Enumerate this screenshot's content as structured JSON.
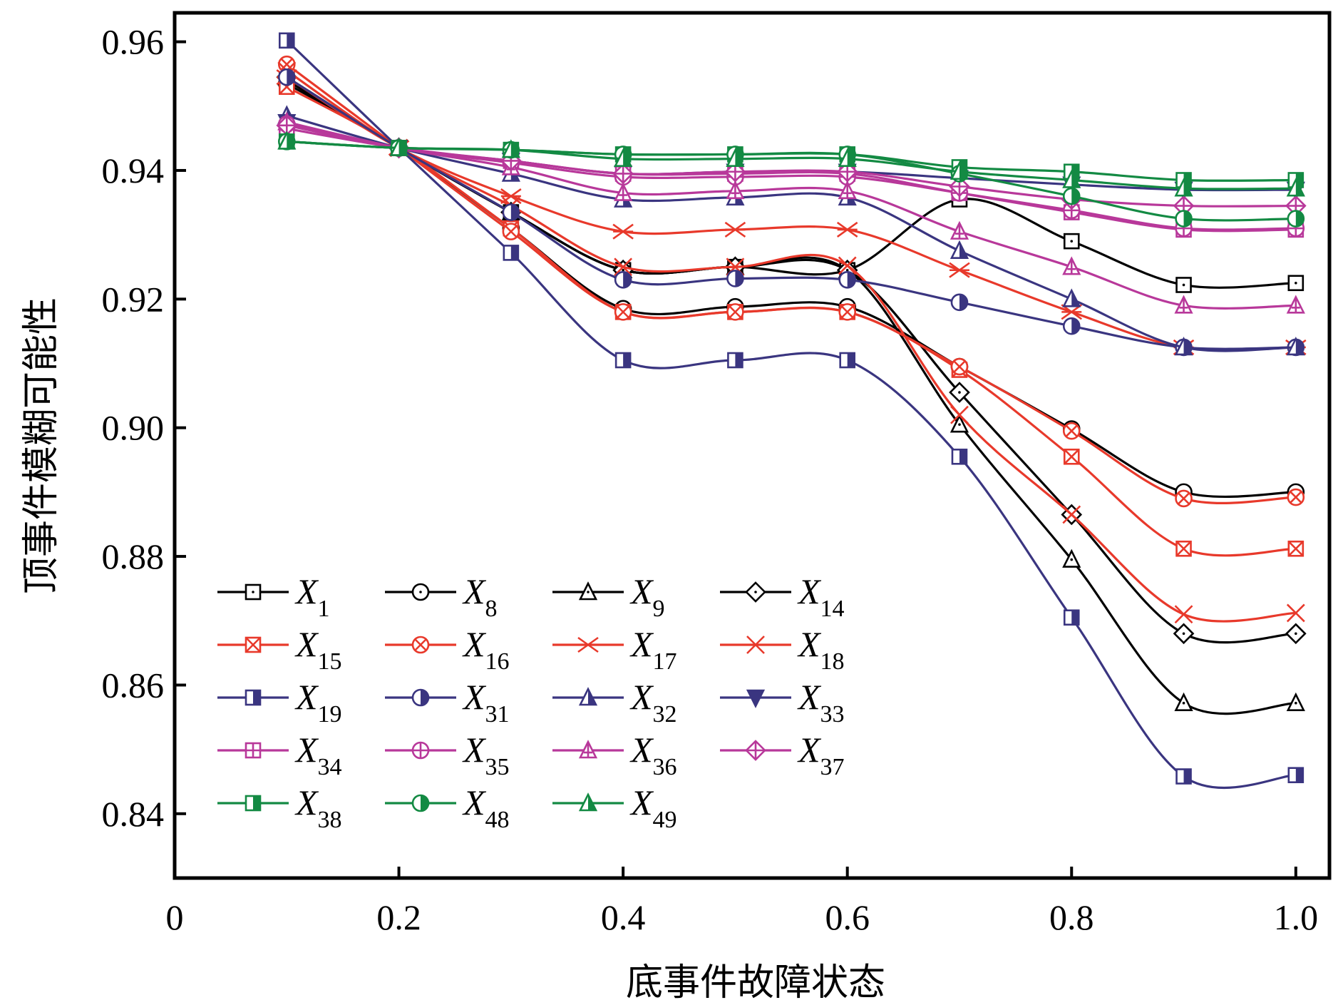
{
  "chart_data": {
    "type": "line",
    "xlabel": "底事件故障状态",
    "ylabel": "顶事件模糊可能性",
    "xlim": [
      0,
      1.03
    ],
    "ylim": [
      0.83,
      0.9645
    ],
    "xticks": [
      0,
      0.2,
      0.4,
      0.6,
      0.8,
      1.0
    ],
    "xtick_labels": [
      "0",
      "0.2",
      "0.4",
      "0.6",
      "0.8",
      "1.0"
    ],
    "yticks": [
      0.84,
      0.86,
      0.88,
      0.9,
      0.92,
      0.94,
      0.96
    ],
    "ytick_labels": [
      "0.84",
      "0.86",
      "0.88",
      "0.90",
      "0.92",
      "0.94",
      "0.96"
    ],
    "x": [
      0.1,
      0.2,
      0.3,
      0.4,
      0.5,
      0.6,
      0.7,
      0.8,
      0.9,
      1.0
    ],
    "legend_position": "lower-left",
    "series": [
      {
        "name": "X",
        "sub": "1",
        "color": "#000000",
        "marker": "square",
        "values": [
          0.954,
          0.9435,
          0.9335,
          0.9245,
          0.925,
          0.9245,
          0.9355,
          0.929,
          0.9222,
          0.9225
        ]
      },
      {
        "name": "X",
        "sub": "8",
        "color": "#000000",
        "marker": "circle",
        "values": [
          0.9535,
          0.9435,
          0.931,
          0.9185,
          0.9188,
          0.9188,
          0.9095,
          0.8998,
          0.89,
          0.89
        ]
      },
      {
        "name": "X",
        "sub": "9",
        "color": "#000000",
        "marker": "triangle",
        "values": [
          0.9545,
          0.9435,
          0.9335,
          0.9245,
          0.925,
          0.9245,
          0.9005,
          0.8795,
          0.8572,
          0.8572
        ]
      },
      {
        "name": "X",
        "sub": "14",
        "color": "#000000",
        "marker": "diamond",
        "values": [
          0.9545,
          0.9435,
          0.9335,
          0.9245,
          0.925,
          0.9245,
          0.9055,
          0.8865,
          0.868,
          0.868
        ]
      },
      {
        "name": "X",
        "sub": "15",
        "color": "#e8392b",
        "marker": "square-x",
        "values": [
          0.953,
          0.9435,
          0.931,
          0.918,
          0.918,
          0.918,
          0.909,
          0.8955,
          0.8812,
          0.8812
        ]
      },
      {
        "name": "X",
        "sub": "16",
        "color": "#e8392b",
        "marker": "circle-x",
        "values": [
          0.9565,
          0.9435,
          0.9305,
          0.918,
          0.918,
          0.918,
          0.9095,
          0.8995,
          0.889,
          0.8892
        ]
      },
      {
        "name": "X",
        "sub": "17",
        "color": "#e8392b",
        "marker": "star",
        "values": [
          0.9545,
          0.9435,
          0.936,
          0.9305,
          0.9308,
          0.9308,
          0.9245,
          0.918,
          0.9125,
          0.9125
        ]
      },
      {
        "name": "X",
        "sub": "18",
        "color": "#e8392b",
        "marker": "x",
        "values": [
          0.9555,
          0.9435,
          0.9345,
          0.925,
          0.925,
          0.9252,
          0.902,
          0.8865,
          0.871,
          0.8712
        ]
      },
      {
        "name": "X",
        "sub": "19",
        "color": "#3a3580",
        "marker": "square-half",
        "values": [
          0.9602,
          0.9435,
          0.9272,
          0.9105,
          0.9105,
          0.9105,
          0.8955,
          0.8705,
          0.8458,
          0.846
        ]
      },
      {
        "name": "X",
        "sub": "31",
        "color": "#3a3580",
        "marker": "circle-half",
        "values": [
          0.9545,
          0.9435,
          0.9335,
          0.923,
          0.9232,
          0.923,
          0.9195,
          0.9158,
          0.9125,
          0.9125
        ]
      },
      {
        "name": "X",
        "sub": "32",
        "color": "#3a3580",
        "marker": "triangle-half",
        "values": [
          0.9485,
          0.9435,
          0.9395,
          0.9355,
          0.9358,
          0.9358,
          0.9275,
          0.92,
          0.9125,
          0.9125
        ]
      },
      {
        "name": "X",
        "sub": "33",
        "color": "#3a3580",
        "marker": "triangle-down",
        "values": [
          0.9475,
          0.9435,
          0.9415,
          0.9395,
          0.9398,
          0.9398,
          0.9388,
          0.9378,
          0.937,
          0.937
        ]
      },
      {
        "name": "X",
        "sub": "34",
        "color": "#b8389a",
        "marker": "square-plus",
        "values": [
          0.9465,
          0.9435,
          0.9415,
          0.9395,
          0.9395,
          0.9395,
          0.9365,
          0.9335,
          0.9308,
          0.9308
        ]
      },
      {
        "name": "X",
        "sub": "35",
        "color": "#b8389a",
        "marker": "circle-plus",
        "values": [
          0.9472,
          0.9435,
          0.9412,
          0.939,
          0.939,
          0.939,
          0.9365,
          0.9338,
          0.931,
          0.931
        ]
      },
      {
        "name": "X",
        "sub": "36",
        "color": "#b8389a",
        "marker": "triangle-plus",
        "values": [
          0.9475,
          0.9435,
          0.9405,
          0.9365,
          0.9368,
          0.9368,
          0.9305,
          0.925,
          0.919,
          0.919
        ]
      },
      {
        "name": "X",
        "sub": "37",
        "color": "#b8389a",
        "marker": "diamond-plus",
        "values": [
          0.947,
          0.9435,
          0.9415,
          0.9395,
          0.9398,
          0.9398,
          0.9375,
          0.9355,
          0.9345,
          0.9345
        ]
      },
      {
        "name": "X",
        "sub": "38",
        "color": "#138a43",
        "marker": "square-half",
        "values": [
          0.9445,
          0.9435,
          0.9432,
          0.9425,
          0.9425,
          0.9425,
          0.9405,
          0.9398,
          0.9385,
          0.9385
        ]
      },
      {
        "name": "X",
        "sub": "48",
        "color": "#138a43",
        "marker": "circle-half",
        "values": [
          0.9445,
          0.9435,
          0.9432,
          0.9425,
          0.9425,
          0.9425,
          0.9395,
          0.936,
          0.9325,
          0.9325
        ]
      },
      {
        "name": "X",
        "sub": "49",
        "color": "#138a43",
        "marker": "triangle-half",
        "values": [
          0.9445,
          0.9435,
          0.9432,
          0.9418,
          0.9418,
          0.9418,
          0.9398,
          0.9385,
          0.9372,
          0.9372
        ]
      }
    ]
  }
}
